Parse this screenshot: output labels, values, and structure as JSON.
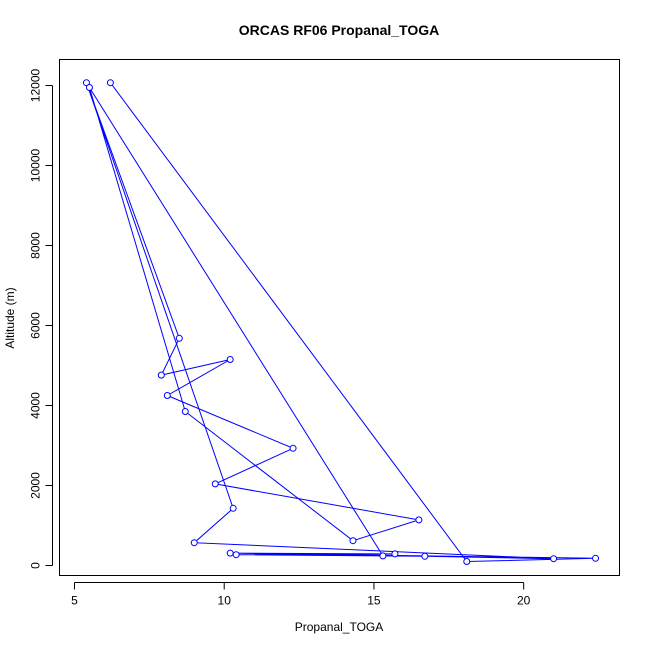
{
  "chart_data": {
    "type": "line",
    "title": "ORCAS RF06 Propanal_TOGA",
    "xlabel": "Propanal_TOGA",
    "ylabel": "Altitude (m)",
    "xlim": [
      4.5,
      23.2
    ],
    "ylim": [
      -250,
      12650
    ],
    "x_ticks": [
      5,
      10,
      15,
      20
    ],
    "y_ticks": [
      0,
      2000,
      4000,
      6000,
      8000,
      10000,
      12000
    ],
    "grid": false,
    "legend": "none",
    "series": [
      {
        "color": "#0000ff",
        "marker": "open-circle",
        "points": [
          {
            "x": 6.2,
            "y": 12070
          },
          {
            "x": 18.1,
            "y": 100
          },
          {
            "x": 22.4,
            "y": 180
          },
          {
            "x": 10.2,
            "y": 310
          },
          {
            "x": 15.7,
            "y": 290
          },
          {
            "x": 10.4,
            "y": 270
          },
          {
            "x": 16.7,
            "y": 230
          },
          {
            "x": 21.0,
            "y": 170
          },
          {
            "x": 9.0,
            "y": 570
          },
          {
            "x": 10.3,
            "y": 1430
          },
          {
            "x": 5.4,
            "y": 12070
          },
          {
            "x": 8.5,
            "y": 5680
          },
          {
            "x": 7.9,
            "y": 4760
          },
          {
            "x": 10.2,
            "y": 5150
          },
          {
            "x": 8.1,
            "y": 4250
          },
          {
            "x": 12.3,
            "y": 2930
          },
          {
            "x": 9.7,
            "y": 2040
          },
          {
            "x": 16.5,
            "y": 1140
          },
          {
            "x": 14.3,
            "y": 620
          },
          {
            "x": 8.7,
            "y": 3850
          },
          {
            "x": 5.5,
            "y": 11950
          },
          {
            "x": 15.3,
            "y": 240
          }
        ]
      }
    ]
  }
}
